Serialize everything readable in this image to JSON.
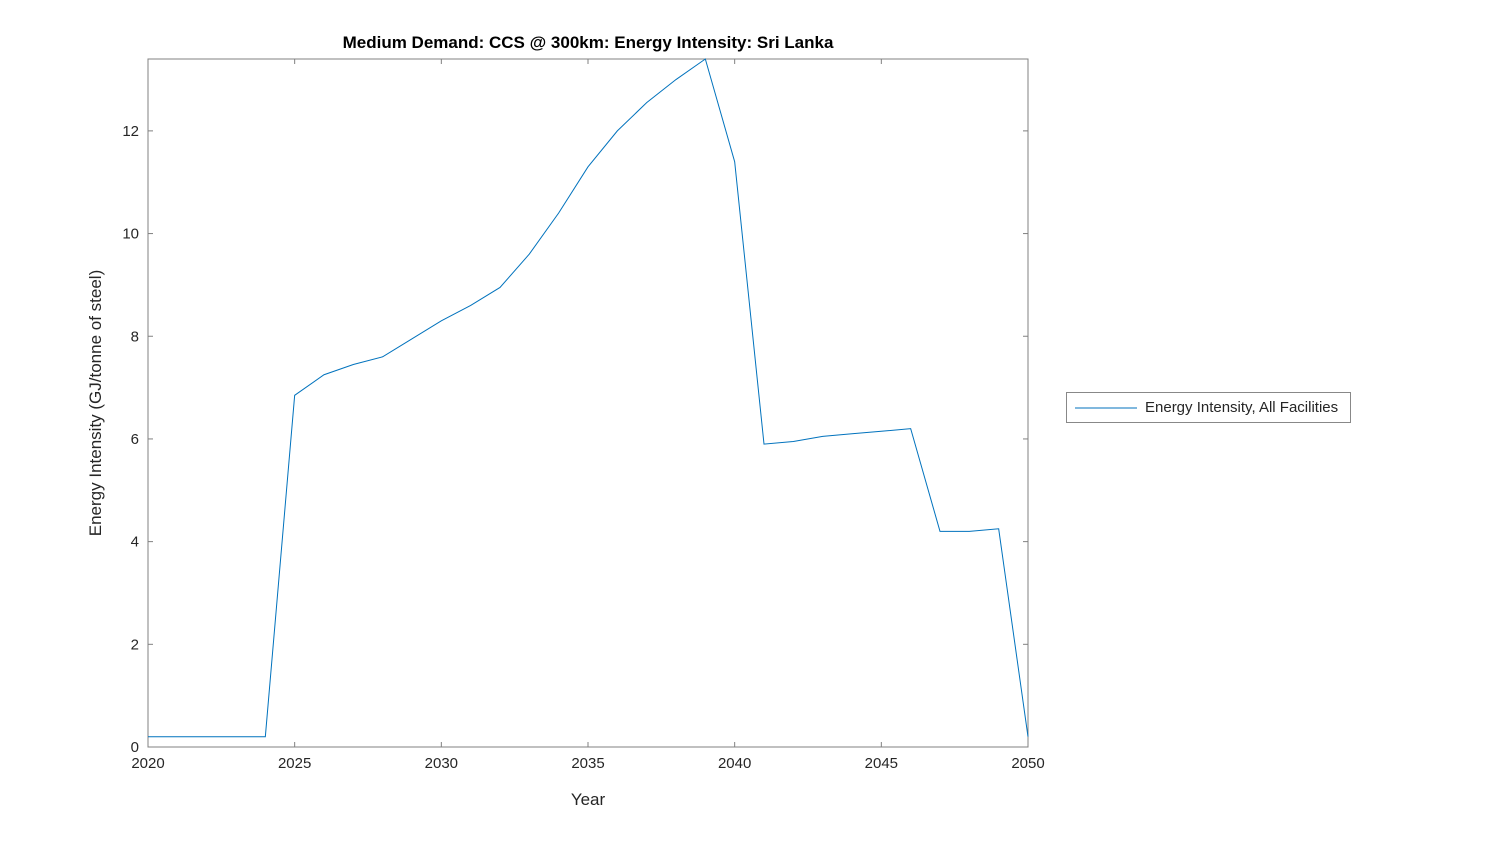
{
  "figure": {
    "title": "Medium Demand: CCS @ 300km: Energy Intensity: Sri Lanka",
    "xlabel": "Year",
    "ylabel": "Energy Intensity (GJ/tonne of steel)",
    "legend": {
      "entries": [
        {
          "label": "Energy Intensity, All Facilities",
          "color": "#0072BD"
        }
      ]
    }
  },
  "chart_data": {
    "type": "line",
    "title": "Medium Demand: CCS @ 300km: Energy Intensity: Sri Lanka",
    "xlabel": "Year",
    "ylabel": "Energy Intensity (GJ/tonne of steel)",
    "x": [
      2020,
      2021,
      2022,
      2023,
      2024,
      2025,
      2026,
      2027,
      2028,
      2029,
      2030,
      2031,
      2032,
      2033,
      2034,
      2035,
      2036,
      2037,
      2038,
      2039,
      2040,
      2041,
      2042,
      2043,
      2044,
      2045,
      2046,
      2047,
      2048,
      2049,
      2050
    ],
    "series": [
      {
        "name": "Energy Intensity, All Facilities",
        "color": "#0072BD",
        "values": [
          0.2,
          0.2,
          0.2,
          0.2,
          0.2,
          6.85,
          7.25,
          7.45,
          7.6,
          7.95,
          8.3,
          8.6,
          8.95,
          9.6,
          10.4,
          11.3,
          12.0,
          12.55,
          13.0,
          13.4,
          11.4,
          5.9,
          5.95,
          6.05,
          6.1,
          6.15,
          6.2,
          4.2,
          4.2,
          4.25,
          0.2
        ]
      }
    ],
    "xlim": [
      2020,
      2050
    ],
    "ylim": [
      0,
      13.4
    ],
    "xticks": [
      2020,
      2025,
      2030,
      2035,
      2040,
      2045,
      2050
    ],
    "yticks": [
      0,
      2,
      4,
      6,
      8,
      10,
      12
    ],
    "grid": false,
    "legend_position": "right-outside",
    "axis_color": "#808080",
    "background": "#ffffff"
  }
}
